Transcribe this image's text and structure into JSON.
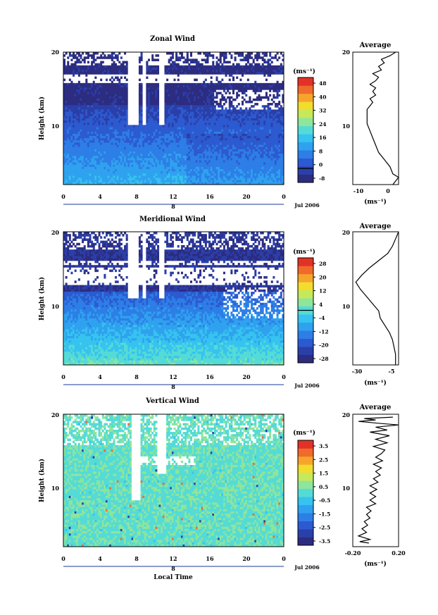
{
  "x_ticks": [
    "0",
    "4",
    "8",
    "12",
    "16",
    "20",
    "0"
  ],
  "y_ticks": [
    "20",
    "10"
  ],
  "colorbar_unit": "(ms⁻¹)",
  "avg_unit": "(ms⁻¹)",
  "day_label": "8",
  "date_label": "Jul 2006",
  "avg_title": "Average",
  "ylabel": "Height (km)",
  "xlabel": "Local Time",
  "chart_data": [
    {
      "type": "heatmap",
      "title": "Zonal Wind",
      "xlabel": "",
      "ylabel": "Height (km)",
      "xlim": [
        0,
        24
      ],
      "ylim": [
        1.5,
        20
      ],
      "colorbar": {
        "unit": "(ms⁻¹)",
        "ticks": [
          "48",
          "40",
          "32",
          "24",
          "16",
          "8",
          "0",
          "-8"
        ],
        "range": [
          -8,
          52
        ],
        "contour": 0
      },
      "average_profile": {
        "title": "Average",
        "xlim": [
          -13,
          3
        ],
        "xticks": [
          "-10",
          "0"
        ],
        "yticks": [
          "20",
          "10"
        ],
        "xlabel": "(ms⁻¹)",
        "points": [
          [
            2,
            20
          ],
          [
            0,
            19.5
          ],
          [
            -3,
            19
          ],
          [
            -2,
            18.5
          ],
          [
            -4,
            18
          ],
          [
            -3,
            17.5
          ],
          [
            -6,
            17
          ],
          [
            -4,
            16.5
          ],
          [
            -5,
            16
          ],
          [
            -7,
            15.5
          ],
          [
            -5,
            15
          ],
          [
            -6,
            14.5
          ],
          [
            -5,
            14
          ],
          [
            -7,
            13.5
          ],
          [
            -6,
            13
          ],
          [
            -7,
            12.5
          ],
          [
            -8,
            12
          ],
          [
            -8,
            11
          ],
          [
            -8,
            10
          ],
          [
            -7,
            9
          ],
          [
            -6,
            8
          ],
          [
            -5,
            7
          ],
          [
            -4,
            6
          ],
          [
            -2,
            5
          ],
          [
            0,
            4
          ],
          [
            1,
            3
          ],
          [
            3,
            2.5
          ],
          [
            2,
            2
          ],
          [
            1,
            1.5
          ]
        ]
      }
    },
    {
      "type": "heatmap",
      "title": "Meridional Wind",
      "xlabel": "",
      "ylabel": "Height (km)",
      "xlim": [
        0,
        24
      ],
      "ylim": [
        1.5,
        20
      ],
      "colorbar": {
        "unit": "(ms⁻¹)",
        "ticks": [
          "28",
          "20",
          "12",
          "4",
          "-4",
          "-12",
          "-20",
          "-28"
        ],
        "range": [
          -32,
          32
        ],
        "contour": 0
      },
      "average_profile": {
        "title": "Average",
        "xlim": [
          -33,
          -3
        ],
        "xticks": [
          "-30",
          "-5"
        ],
        "yticks": [
          "20",
          "10"
        ],
        "xlabel": "(ms⁻¹)",
        "points": [
          [
            -3,
            20
          ],
          [
            -5,
            19
          ],
          [
            -7,
            18
          ],
          [
            -10,
            17
          ],
          [
            -16,
            16
          ],
          [
            -22,
            15
          ],
          [
            -27,
            14
          ],
          [
            -31,
            13
          ],
          [
            -28,
            12
          ],
          [
            -24,
            11
          ],
          [
            -20,
            10
          ],
          [
            -16,
            9
          ],
          [
            -15,
            8
          ],
          [
            -12,
            7
          ],
          [
            -9,
            6
          ],
          [
            -7,
            5
          ],
          [
            -6,
            4
          ],
          [
            -5,
            3
          ],
          [
            -5,
            2
          ],
          [
            -5,
            1.5
          ]
        ]
      }
    },
    {
      "type": "heatmap",
      "title": "Vertical Wind",
      "xlabel": "Local Time",
      "ylabel": "Height (km)",
      "xlim": [
        0,
        24
      ],
      "ylim": [
        1.5,
        20
      ],
      "colorbar": {
        "unit": "(ms⁻¹)",
        "ticks": [
          "3.5",
          "2.5",
          "1.5",
          "0.5",
          "-0.5",
          "-1.5",
          "-2.5",
          "-3.5"
        ],
        "range": [
          -4,
          4
        ]
      },
      "average_profile": {
        "title": "Average",
        "xlim": [
          -0.2,
          0.2
        ],
        "xticks": [
          "-0.20",
          "0.20"
        ],
        "yticks": [
          "20",
          "10"
        ],
        "xlabel": "(ms⁻¹)",
        "points": [
          [
            0.15,
            19.6
          ],
          [
            -0.1,
            19.4
          ],
          [
            0.0,
            19.2
          ],
          [
            -0.15,
            19.0
          ],
          [
            0.05,
            18.7
          ],
          [
            0.2,
            18.5
          ],
          [
            0.0,
            18.2
          ],
          [
            0.1,
            17.8
          ],
          [
            -0.05,
            17.5
          ],
          [
            0.12,
            17.0
          ],
          [
            0.0,
            16.5
          ],
          [
            0.1,
            16.0
          ],
          [
            -0.02,
            15.5
          ],
          [
            0.08,
            15.0
          ],
          [
            0.05,
            14.5
          ],
          [
            0.0,
            14.0
          ],
          [
            0.06,
            13.5
          ],
          [
            -0.02,
            13.0
          ],
          [
            0.05,
            12.5
          ],
          [
            0.0,
            12.0
          ],
          [
            0.04,
            11.5
          ],
          [
            -0.02,
            11.0
          ],
          [
            0.02,
            10.5
          ],
          [
            -0.05,
            10.0
          ],
          [
            0.01,
            9.5
          ],
          [
            -0.05,
            9.0
          ],
          [
            0.0,
            8.5
          ],
          [
            -0.05,
            8.0
          ],
          [
            0.0,
            7.5
          ],
          [
            -0.08,
            7.0
          ],
          [
            -0.04,
            6.5
          ],
          [
            -0.08,
            6.0
          ],
          [
            -0.05,
            5.5
          ],
          [
            -0.1,
            5.0
          ],
          [
            -0.07,
            4.5
          ],
          [
            -0.12,
            4.0
          ],
          [
            -0.08,
            3.5
          ],
          [
            -0.15,
            3.0
          ],
          [
            -0.05,
            2.5
          ],
          [
            -0.14,
            2.2
          ],
          [
            -0.06,
            2.0
          ]
        ]
      }
    }
  ]
}
